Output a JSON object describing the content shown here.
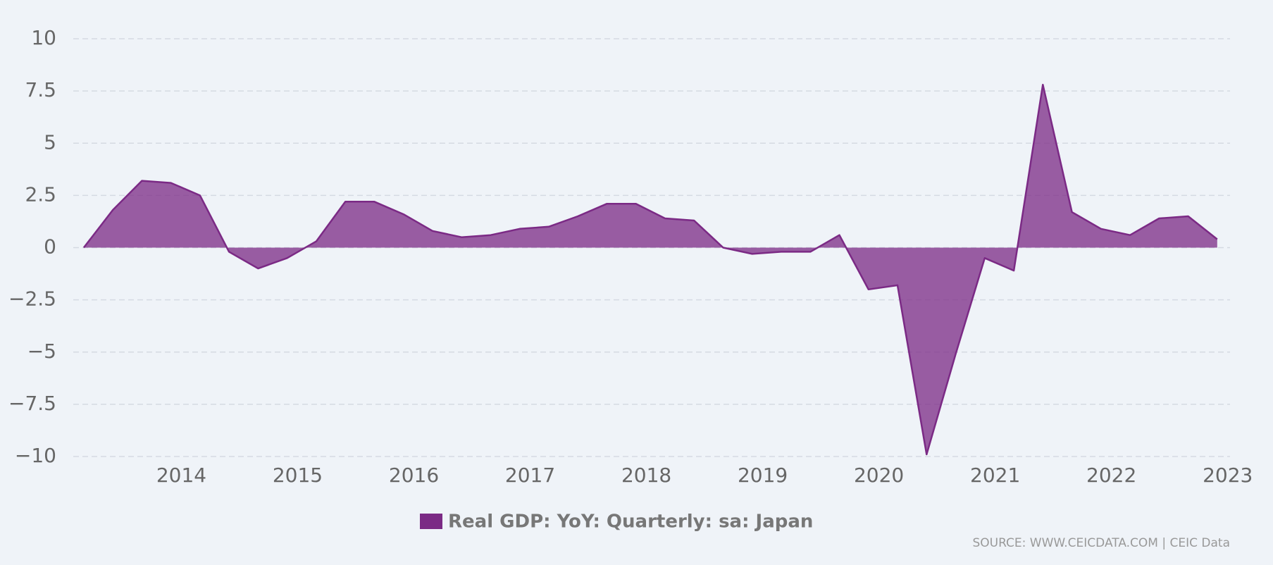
{
  "chart_data": {
    "type": "area",
    "x": [
      2013.16,
      2013.41,
      2013.66,
      2013.91,
      2014.16,
      2014.41,
      2014.66,
      2014.91,
      2015.16,
      2015.41,
      2015.66,
      2015.91,
      2016.16,
      2016.41,
      2016.66,
      2016.91,
      2017.16,
      2017.41,
      2017.66,
      2017.91,
      2018.16,
      2018.41,
      2018.66,
      2018.91,
      2019.16,
      2019.41,
      2019.66,
      2019.91,
      2020.16,
      2020.41,
      2020.66,
      2020.91,
      2021.16,
      2021.41,
      2021.66,
      2021.91,
      2022.16,
      2022.41,
      2022.66,
      2022.91
    ],
    "series": [
      {
        "name": "Real GDP: YoY: Quarterly: sa: Japan",
        "color": "#7b2a85",
        "values": [
          0.0,
          1.8,
          3.2,
          3.1,
          2.5,
          -0.2,
          -1.0,
          -0.5,
          0.3,
          2.2,
          2.2,
          1.6,
          0.8,
          0.5,
          0.6,
          0.9,
          1.0,
          1.5,
          2.1,
          2.1,
          1.4,
          1.3,
          0.0,
          -0.3,
          -0.2,
          -0.2,
          0.6,
          -2.0,
          -1.8,
          -9.9,
          -5.1,
          -0.5,
          -1.1,
          7.8,
          1.7,
          0.9,
          0.6,
          1.4,
          1.5,
          0.4
        ]
      }
    ],
    "xlim": [
      2013.07,
      2023.02
    ],
    "xticks": [
      2014,
      2015,
      2016,
      2017,
      2018,
      2019,
      2020,
      2021,
      2022,
      2023
    ],
    "ylim": [
      -10,
      10
    ],
    "yticks": [
      {
        "value": -10,
        "label": "−10"
      },
      {
        "value": -7.5,
        "label": "−7.5"
      },
      {
        "value": -5,
        "label": "−5"
      },
      {
        "value": -2.5,
        "label": "−2.5"
      },
      0,
      2.5,
      5,
      7.5,
      10
    ],
    "grid": true,
    "source": "SOURCE: WWW.CEICDATA.COM | CEIC Data"
  }
}
